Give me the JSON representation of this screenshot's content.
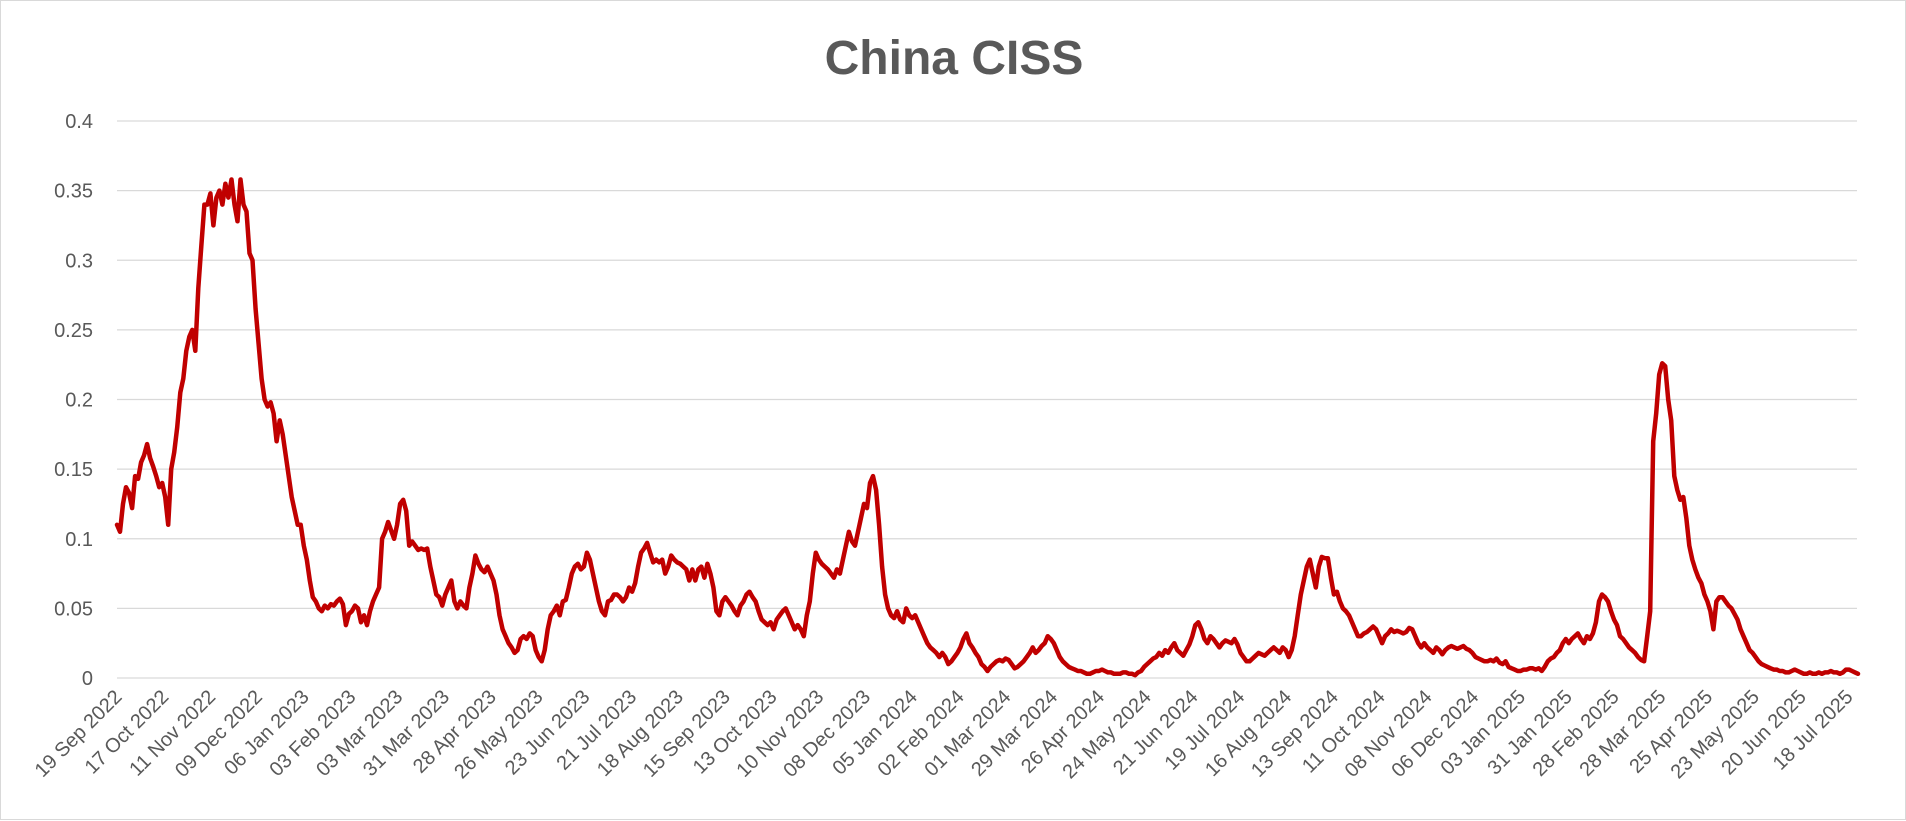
{
  "chart_data": {
    "type": "line",
    "title": "China  CISS",
    "xlabel": "",
    "ylabel": "",
    "ylim": [
      0,
      0.4
    ],
    "yticks": [
      "0",
      "0.05",
      "0.1",
      "0.15",
      "0.2",
      "0.25",
      "0.3",
      "0.35",
      "0.4"
    ],
    "grid": true,
    "legend": "none",
    "line_color": "#c00000",
    "x_tick_labels": [
      "19 Sep 2022",
      "17 Oct 2022",
      "11 Nov 2022",
      "09 Dec 2022",
      "06 Jan 2023",
      "03 Feb 2023",
      "03 Mar 2023",
      "31 Mar 2023",
      "28 Apr 2023",
      "26 May 2023",
      "23 Jun 2023",
      "21 Jul 2023",
      "18 Aug 2023",
      "15 Sep 2023",
      "13 Oct 2023",
      "10 Nov 2023",
      "08 Dec 2023",
      "05 Jan 2024",
      "02 Feb 2024",
      "01 Mar 2024",
      "29 Mar 2024",
      "26 Apr 2024",
      "24 May 2024",
      "21 Jun 2024",
      "19 Jul 2024",
      "16 Aug 2024",
      "13 Sep 2024",
      "11 Oct 2024",
      "08 Nov 2024",
      "06 Dec 2024",
      "03 Jan 2025",
      "31 Jan 2025",
      "28 Feb 2025",
      "28 Mar 2025",
      "25 Apr 2025",
      "23 May 2025",
      "20 Jun 2025",
      "18 Jul 2025"
    ],
    "series": [
      {
        "values": [
          0.11,
          0.105,
          0.125,
          0.137,
          0.133,
          0.122,
          0.145,
          0.143,
          0.155,
          0.16,
          0.168,
          0.158,
          0.152,
          0.145,
          0.137,
          0.14,
          0.13,
          0.11,
          0.15,
          0.162,
          0.18,
          0.205,
          0.215,
          0.235,
          0.245,
          0.25,
          0.235,
          0.28,
          0.31,
          0.34,
          0.34,
          0.348,
          0.325,
          0.345,
          0.35,
          0.34,
          0.355,
          0.345,
          0.358,
          0.34,
          0.328,
          0.358,
          0.34,
          0.335,
          0.305,
          0.3,
          0.265,
          0.24,
          0.215,
          0.2,
          0.195,
          0.198,
          0.19,
          0.17,
          0.185,
          0.175,
          0.16,
          0.145,
          0.13,
          0.12,
          0.11,
          0.11,
          0.095,
          0.085,
          0.07,
          0.058,
          0.055,
          0.05,
          0.048,
          0.052,
          0.05,
          0.053,
          0.052,
          0.055,
          0.057,
          0.053,
          0.038,
          0.046,
          0.048,
          0.052,
          0.05,
          0.04,
          0.045,
          0.038,
          0.048,
          0.055,
          0.06,
          0.065,
          0.1,
          0.105,
          0.112,
          0.106,
          0.1,
          0.11,
          0.125,
          0.128,
          0.12,
          0.095,
          0.098,
          0.095,
          0.092,
          0.093,
          0.092,
          0.093,
          0.08,
          0.07,
          0.06,
          0.058,
          0.052,
          0.06,
          0.065,
          0.07,
          0.055,
          0.05,
          0.055,
          0.052,
          0.05,
          0.065,
          0.075,
          0.088,
          0.082,
          0.078,
          0.076,
          0.08,
          0.075,
          0.07,
          0.06,
          0.045,
          0.035,
          0.03,
          0.025,
          0.022,
          0.018,
          0.02,
          0.028,
          0.03,
          0.028,
          0.032,
          0.03,
          0.02,
          0.015,
          0.012,
          0.02,
          0.035,
          0.045,
          0.048,
          0.052,
          0.045,
          0.055,
          0.056,
          0.065,
          0.075,
          0.08,
          0.082,
          0.078,
          0.08,
          0.09,
          0.085,
          0.075,
          0.065,
          0.055,
          0.048,
          0.045,
          0.055,
          0.056,
          0.06,
          0.06,
          0.058,
          0.055,
          0.058,
          0.065,
          0.062,
          0.068,
          0.08,
          0.09,
          0.093,
          0.097,
          0.09,
          0.083,
          0.085,
          0.083,
          0.085,
          0.075,
          0.08,
          0.088,
          0.085,
          0.083,
          0.082,
          0.08,
          0.078,
          0.07,
          0.078,
          0.07,
          0.078,
          0.08,
          0.072,
          0.082,
          0.075,
          0.065,
          0.048,
          0.045,
          0.055,
          0.058,
          0.055,
          0.052,
          0.048,
          0.045,
          0.052,
          0.055,
          0.06,
          0.062,
          0.058,
          0.055,
          0.048,
          0.042,
          0.04,
          0.038,
          0.04,
          0.035,
          0.042,
          0.045,
          0.048,
          0.05,
          0.045,
          0.04,
          0.035,
          0.038,
          0.035,
          0.03,
          0.045,
          0.055,
          0.075,
          0.09,
          0.085,
          0.082,
          0.08,
          0.078,
          0.075,
          0.072,
          0.078,
          0.075,
          0.085,
          0.095,
          0.105,
          0.098,
          0.095,
          0.105,
          0.115,
          0.125,
          0.122,
          0.14,
          0.145,
          0.135,
          0.11,
          0.08,
          0.06,
          0.05,
          0.045,
          0.043,
          0.048,
          0.042,
          0.04,
          0.05,
          0.045,
          0.043,
          0.045,
          0.04,
          0.035,
          0.03,
          0.025,
          0.022,
          0.02,
          0.018,
          0.015,
          0.018,
          0.015,
          0.01,
          0.012,
          0.015,
          0.018,
          0.022,
          0.028,
          0.032,
          0.025,
          0.022,
          0.018,
          0.015,
          0.01,
          0.008,
          0.005,
          0.008,
          0.01,
          0.012,
          0.013,
          0.012,
          0.014,
          0.013,
          0.01,
          0.007,
          0.008,
          0.01,
          0.012,
          0.015,
          0.018,
          0.022,
          0.018,
          0.02,
          0.023,
          0.025,
          0.03,
          0.028,
          0.025,
          0.02,
          0.015,
          0.012,
          0.01,
          0.008,
          0.007,
          0.006,
          0.005,
          0.005,
          0.004,
          0.003,
          0.003,
          0.004,
          0.005,
          0.005,
          0.006,
          0.005,
          0.004,
          0.004,
          0.003,
          0.003,
          0.003,
          0.004,
          0.004,
          0.003,
          0.003,
          0.002,
          0.004,
          0.005,
          0.008,
          0.01,
          0.012,
          0.014,
          0.015,
          0.018,
          0.016,
          0.02,
          0.018,
          0.022,
          0.025,
          0.02,
          0.018,
          0.016,
          0.02,
          0.024,
          0.03,
          0.038,
          0.04,
          0.035,
          0.028,
          0.025,
          0.03,
          0.028,
          0.025,
          0.022,
          0.025,
          0.027,
          0.026,
          0.025,
          0.028,
          0.024,
          0.018,
          0.015,
          0.012,
          0.012,
          0.014,
          0.016,
          0.018,
          0.017,
          0.016,
          0.018,
          0.02,
          0.022,
          0.02,
          0.018,
          0.022,
          0.02,
          0.015,
          0.02,
          0.03,
          0.045,
          0.06,
          0.07,
          0.08,
          0.085,
          0.075,
          0.065,
          0.08,
          0.087,
          0.086,
          0.086,
          0.072,
          0.06,
          0.062,
          0.055,
          0.05,
          0.048,
          0.045,
          0.04,
          0.035,
          0.03,
          0.03,
          0.032,
          0.033,
          0.035,
          0.037,
          0.035,
          0.03,
          0.025,
          0.03,
          0.032,
          0.035,
          0.033,
          0.034,
          0.033,
          0.032,
          0.033,
          0.036,
          0.035,
          0.03,
          0.025,
          0.022,
          0.025,
          0.022,
          0.02,
          0.018,
          0.022,
          0.02,
          0.017,
          0.02,
          0.022,
          0.023,
          0.022,
          0.021,
          0.022,
          0.023,
          0.021,
          0.02,
          0.018,
          0.015,
          0.014,
          0.013,
          0.012,
          0.012,
          0.013,
          0.012,
          0.014,
          0.011,
          0.01,
          0.012,
          0.008,
          0.007,
          0.006,
          0.005,
          0.005,
          0.006,
          0.006,
          0.007,
          0.007,
          0.006,
          0.007,
          0.005,
          0.008,
          0.012,
          0.014,
          0.015,
          0.018,
          0.02,
          0.025,
          0.028,
          0.025,
          0.028,
          0.03,
          0.032,
          0.028,
          0.025,
          0.03,
          0.028,
          0.032,
          0.04,
          0.055,
          0.06,
          0.058,
          0.055,
          0.048,
          0.042,
          0.038,
          0.03,
          0.028,
          0.025,
          0.022,
          0.02,
          0.018,
          0.015,
          0.013,
          0.012,
          0.03,
          0.048,
          0.17,
          0.19,
          0.218,
          0.226,
          0.224,
          0.2,
          0.185,
          0.145,
          0.135,
          0.128,
          0.13,
          0.115,
          0.095,
          0.085,
          0.078,
          0.072,
          0.068,
          0.06,
          0.055,
          0.048,
          0.035,
          0.055,
          0.058,
          0.058,
          0.055,
          0.052,
          0.05,
          0.046,
          0.042,
          0.035,
          0.03,
          0.025,
          0.02,
          0.018,
          0.015,
          0.012,
          0.01,
          0.009,
          0.008,
          0.007,
          0.006,
          0.006,
          0.005,
          0.005,
          0.004,
          0.004,
          0.005,
          0.006,
          0.005,
          0.004,
          0.003,
          0.003,
          0.004,
          0.003,
          0.003,
          0.004,
          0.003,
          0.004,
          0.004,
          0.005,
          0.004,
          0.004,
          0.003,
          0.004,
          0.006,
          0.006,
          0.005,
          0.004,
          0.003
        ]
      }
    ]
  }
}
